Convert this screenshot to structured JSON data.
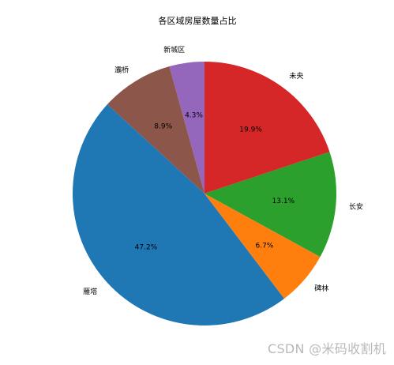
{
  "chart_data": {
    "type": "pie",
    "title": "各区域房屋数量占比",
    "start_angle_deg": 90,
    "direction": "counterclockwise",
    "slices": [
      {
        "label": "新城区",
        "value": 4.3,
        "pct_label": "4.3%",
        "color": "#9467bd"
      },
      {
        "label": "灞桥",
        "value": 8.9,
        "pct_label": "8.9%",
        "color": "#8c564b"
      },
      {
        "label": "雁塔",
        "value": 47.2,
        "pct_label": "47.2%",
        "color": "#1f77b4"
      },
      {
        "label": "碑林",
        "value": 6.7,
        "pct_label": "6.7%",
        "color": "#ff7f0e"
      },
      {
        "label": "长安",
        "value": 13.1,
        "pct_label": "13.1%",
        "color": "#2ca02c"
      },
      {
        "label": "未央",
        "value": 19.9,
        "pct_label": "19.9%",
        "color": "#d62728"
      }
    ]
  },
  "watermark": "CSDN @米码收割机"
}
